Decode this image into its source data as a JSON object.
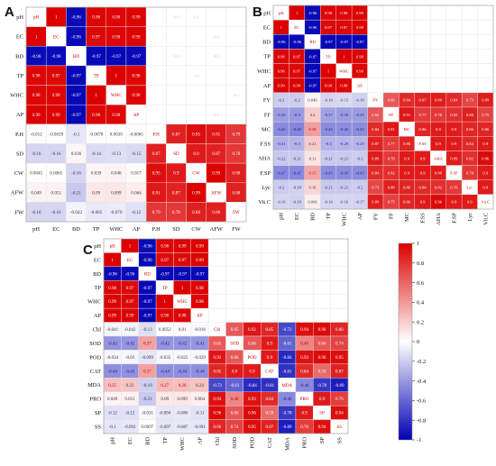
{
  "chart_data": [
    {
      "type": "heatmap",
      "panel_label": "A",
      "variables": [
        "pH",
        "EC",
        "BD",
        "TP",
        "WHC",
        "AP",
        "P.H",
        "SD",
        "CW",
        "AFW",
        "FW"
      ],
      "upper_n": 6,
      "value_range": [
        -1,
        1
      ],
      "matrix": [
        [
          null,
          1,
          -0.96,
          0.98,
          0.98,
          0.99,
          null,
          null,
          null,
          null,
          null
        ],
        [
          1,
          null,
          -0.96,
          0.97,
          0.98,
          0.99,
          null,
          null,
          null,
          null,
          null
        ],
        [
          -0.96,
          -0.96,
          null,
          -0.97,
          -0.97,
          -0.97,
          null,
          null,
          null,
          null,
          null
        ],
        [
          0.98,
          0.97,
          -0.97,
          null,
          1,
          0.98,
          null,
          null,
          null,
          null,
          null
        ],
        [
          0.98,
          0.98,
          -0.97,
          1,
          null,
          0.98,
          null,
          null,
          null,
          null,
          null
        ],
        [
          0.99,
          0.99,
          -0.97,
          0.98,
          0.98,
          null,
          null,
          null,
          null,
          null,
          null
        ],
        [
          -0.012,
          -0.0039,
          -0.1,
          -0.0078,
          0.0039,
          -0.0065,
          null,
          0.87,
          0.95,
          0.91,
          0.79
        ],
        [
          -0.16,
          -0.16,
          0.036,
          -0.14,
          -0.13,
          -0.15,
          0.87,
          null,
          0.9,
          0.87,
          0.78
        ],
        [
          0.0045,
          0.0065,
          -0.16,
          0.039,
          0.048,
          0.017,
          0.95,
          0.9,
          null,
          0.99,
          0.88
        ],
        [
          0.049,
          0.051,
          -0.21,
          0.09,
          0.099,
          0.064,
          0.91,
          0.87,
          0.99,
          null,
          0.88
        ],
        [
          -0.16,
          -0.16,
          -0.042,
          -0.085,
          -0.079,
          -0.12,
          0.79,
          0.78,
          0.88,
          0.88,
          null
        ]
      ],
      "faint_labels": [
        "-0.1",
        "0.2",
        "-0.2",
        "-0.2",
        "-0.3",
        "-0.2",
        "-0.1",
        "0.1"
      ]
    },
    {
      "type": "heatmap",
      "panel_label": "B",
      "variables": [
        "pH",
        "EC",
        "BD",
        "TP",
        "WHC",
        "AP",
        "FY",
        "FF",
        "MC",
        "F.SS",
        "AHA",
        "F.SP",
        "Lyc",
        "Vit.C"
      ],
      "upper_n": 6,
      "value_range": [
        -1,
        1
      ],
      "matrix": [
        [
          null,
          1,
          -0.96,
          0.98,
          0.98,
          0.99,
          null,
          null,
          null,
          null,
          null,
          null,
          null,
          null
        ],
        [
          1,
          null,
          -0.96,
          0.97,
          0.97,
          0.99,
          null,
          null,
          null,
          null,
          null,
          null,
          null,
          null
        ],
        [
          -0.96,
          -0.96,
          null,
          -0.97,
          -0.97,
          -0.97,
          null,
          null,
          null,
          null,
          null,
          null,
          null,
          null
        ],
        [
          0.98,
          0.97,
          -0.97,
          null,
          1,
          0.98,
          null,
          null,
          null,
          null,
          null,
          null,
          null,
          null
        ],
        [
          0.98,
          0.97,
          -0.97,
          1,
          null,
          0.98,
          null,
          null,
          null,
          null,
          null,
          null,
          null,
          null
        ],
        [
          0.99,
          0.99,
          -0.97,
          0.98,
          0.98,
          null,
          null,
          null,
          null,
          null,
          null,
          null,
          null,
          null
        ],
        [
          -0.2,
          -0.2,
          0.046,
          -0.16,
          -0.15,
          -0.18,
          null,
          0.66,
          0.84,
          0.87,
          0.89,
          0.84,
          0.73,
          0.89
        ],
        [
          -0.39,
          -0.4,
          0.2,
          -0.37,
          -0.39,
          -0.39,
          0.66,
          null,
          0.91,
          0.77,
          0.78,
          0.82,
          0.88,
          0.75
        ],
        [
          -0.46,
          -0.48,
          0.38,
          -0.45,
          -0.45,
          -0.45,
          0.84,
          0.91,
          null,
          0.86,
          0.9,
          0.9,
          0.86,
          0.86
        ],
        [
          -0.31,
          -0.3,
          0.21,
          -0.3,
          -0.29,
          -0.29,
          0.87,
          0.77,
          0.86,
          null,
          0.9,
          0.9,
          0.84,
          0.9
        ],
        [
          -0.22,
          -0.21,
          0.11,
          -0.21,
          -0.21,
          -0.2,
          0.89,
          0.78,
          0.9,
          0.9,
          null,
          0.89,
          0.82,
          0.96
        ],
        [
          -0.47,
          -0.47,
          0.35,
          -0.45,
          -0.45,
          -0.45,
          0.84,
          0.82,
          0.9,
          0.9,
          0.89,
          null,
          0.78,
          0.9
        ],
        [
          -0.2,
          -0.18,
          0.16,
          -0.21,
          -0.21,
          -0.2,
          0.73,
          0.88,
          0.86,
          0.84,
          0.82,
          0.78,
          null,
          0.9
        ],
        [
          -0.16,
          -0.18,
          0.066,
          -0.16,
          -0.16,
          -0.17,
          0.89,
          0.75,
          0.86,
          0.9,
          0.96,
          0.9,
          0.9,
          null
        ]
      ]
    },
    {
      "type": "heatmap",
      "panel_label": "C",
      "variables": [
        "pH",
        "EC",
        "BD",
        "TP",
        "WHC",
        "AP",
        "Chl",
        "SOD",
        "POD",
        "CAT",
        "MDA",
        "PRO",
        "SP",
        "SS"
      ],
      "upper_n": 6,
      "value_range": [
        -1,
        1
      ],
      "matrix": [
        [
          null,
          1,
          -0.96,
          0.98,
          0.99,
          0.99,
          null,
          null,
          null,
          null,
          null,
          null,
          null,
          null
        ],
        [
          1,
          null,
          -0.96,
          0.97,
          0.97,
          0.99,
          null,
          null,
          null,
          null,
          null,
          null,
          null,
          null
        ],
        [
          -0.96,
          -0.96,
          null,
          -0.97,
          -0.97,
          -0.97,
          null,
          null,
          null,
          null,
          null,
          null,
          null,
          null
        ],
        [
          0.98,
          0.97,
          -0.97,
          null,
          1,
          0.98,
          null,
          null,
          null,
          null,
          null,
          null,
          null,
          null
        ],
        [
          0.99,
          0.97,
          -0.97,
          1,
          null,
          0.98,
          null,
          null,
          null,
          null,
          null,
          null,
          null,
          null
        ],
        [
          0.99,
          0.99,
          -0.97,
          0.98,
          0.98,
          null,
          null,
          null,
          null,
          null,
          null,
          null,
          null,
          null
        ],
        [
          -0.041,
          -0.042,
          -0.13,
          0.0052,
          0.01,
          -0.016,
          null,
          0.65,
          0.92,
          0.85,
          -0.72,
          0.94,
          0.96,
          0.86
        ],
        [
          -0.42,
          -0.42,
          0.37,
          -0.42,
          -0.42,
          -0.41,
          0.65,
          null,
          0.66,
          0.9,
          -0.61,
          0.48,
          0.66,
          0.74
        ],
        [
          -0.034,
          -0.03,
          -0.099,
          -0.035,
          -0.025,
          -0.029,
          0.92,
          0.66,
          null,
          0.9,
          -0.84,
          0.93,
          0.96,
          0.95
        ],
        [
          -0.44,
          -0.43,
          0.37,
          -0.44,
          -0.44,
          -0.44,
          0.85,
          0.9,
          0.9,
          null,
          -0.81,
          0.84,
          0.59,
          0.87
        ],
        [
          0.25,
          0.23,
          -0.19,
          0.27,
          0.26,
          0.24,
          -0.72,
          -0.61,
          -0.84,
          -0.81,
          null,
          -0.46,
          -0.78,
          -0.89
        ],
        [
          0.049,
          0.051,
          -0.21,
          0.09,
          0.099,
          0.064,
          0.94,
          0.48,
          0.93,
          0.84,
          -0.46,
          null,
          0.9,
          0.76
        ],
        [
          -0.12,
          -0.12,
          -0.031,
          -0.094,
          -0.086,
          -0.11,
          0.96,
          0.66,
          0.96,
          0.59,
          -0.78,
          0.9,
          null,
          0.94
        ],
        [
          -0.1,
          -0.092,
          0.0097,
          -0.097,
          -0.087,
          -0.091,
          0.86,
          0.74,
          0.95,
          0.87,
          -0.89,
          0.76,
          0.94,
          null
        ]
      ]
    }
  ],
  "colorbar": {
    "ticks": [
      1,
      0.8,
      0.6,
      0.4,
      0.2,
      0,
      -0.2,
      -0.4,
      -0.6,
      -0.8,
      -1
    ],
    "colors": {
      "negative": "#0000b4",
      "middle": "#ffffff",
      "positive": "#dc0000"
    }
  }
}
